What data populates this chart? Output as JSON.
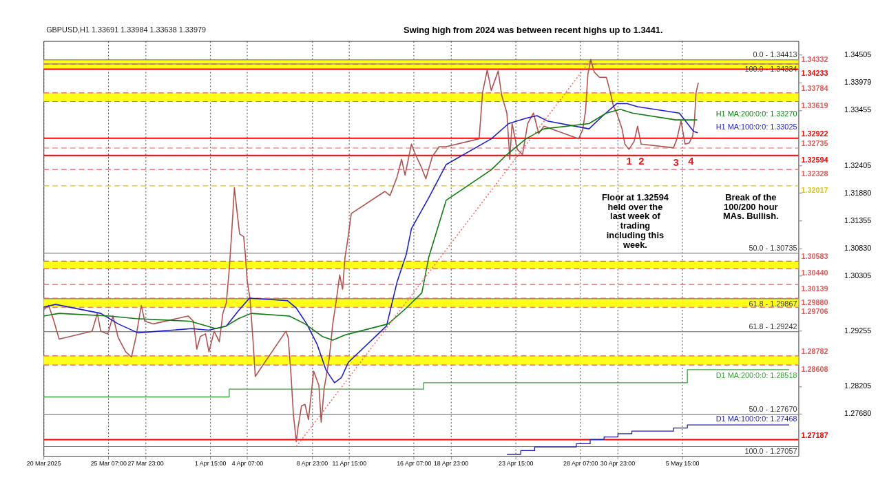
{
  "chart_data": {
    "type": "line",
    "title": "GBPUSD,H1  1.33691 1.33984 1.33638 1.33979",
    "xlim": [
      "2025-03-20T15:00",
      "2025-05-14T00:00"
    ],
    "ylim": [
      1.2688,
      1.3477
    ],
    "xticks": [
      {
        "value": "2025-03-20T15:00",
        "label": "20 Mar 2025"
      },
      {
        "value": "2025-03-25T07:00",
        "label": "25 Mar 07:00"
      },
      {
        "value": "2025-03-27T23:00",
        "label": "27 Mar 23:00"
      },
      {
        "value": "2025-04-01T15:00",
        "label": "1 Apr 15:00"
      },
      {
        "value": "2025-04-04T07:00",
        "label": "4 Apr 07:00"
      },
      {
        "value": "2025-04-08T23:00",
        "label": "8 Apr 23:00"
      },
      {
        "value": "2025-04-11T15:00",
        "label": "11 Apr 15:00"
      },
      {
        "value": "2025-04-16T07:00",
        "label": "16 Apr 07:00"
      },
      {
        "value": "2025-04-18T23:00",
        "label": "18 Apr 23:00"
      },
      {
        "value": "2025-04-23T15:00",
        "label": "23 Apr 15:00"
      },
      {
        "value": "2025-04-28T07:00",
        "label": "28 Apr 07:00"
      },
      {
        "value": "2025-04-30T23:00",
        "label": "30 Apr 23:00"
      },
      {
        "value": "2025-05-05T15:00",
        "label": "5 May 15:00"
      }
    ],
    "yticks": [
      1.34505,
      {
        "value": 1.33979,
        "label": "1.33979"
      },
      1.33455,
      1.32405,
      {
        "value": 1.3188,
        "label": "1.31880"
      },
      1.31355,
      {
        "value": 1.3083,
        "label": "1.30830"
      },
      1.30305,
      1.29255,
      1.28205,
      {
        "value": 1.2768,
        "label": "1.27680"
      }
    ],
    "grid": "x",
    "series": [
      {
        "color": "#b05050",
        "type": "line",
        "x": [
          "2025-03-20T15:00",
          "2025-03-21T00:00",
          "2025-03-21T09:00",
          "2025-03-21T18:00",
          "2025-03-24T03:00",
          "2025-03-24T12:00",
          "2025-03-24T18:00",
          "2025-03-25T06:00",
          "2025-03-25T15:00",
          "2025-03-26T00:00",
          "2025-03-26T13:00",
          "2025-03-26T23:00",
          "2025-03-27T07:00",
          "2025-03-27T16:00",
          "2025-03-27T22:00",
          "2025-03-28T13:00",
          "2025-03-31T01:00",
          "2025-03-31T10:00",
          "2025-03-31T16:00",
          "2025-03-31T22:00",
          "2025-04-01T07:00",
          "2025-04-01T13:00",
          "2025-04-01T22:00",
          "2025-04-02T07:00",
          "2025-04-02T13:00",
          "2025-04-02T19:00",
          "2025-04-03T00:00",
          "2025-04-03T04:00",
          "2025-04-03T09:00",
          "2025-04-03T13:00",
          "2025-04-03T18:00",
          "2025-04-04T01:00",
          "2025-04-04T04:00",
          "2025-04-04T07:00",
          "2025-04-04T12:00",
          "2025-04-04T17:00",
          "2025-04-04T21:00",
          "2025-04-07T02:00",
          "2025-04-07T06:00",
          "2025-04-07T11:00",
          "2025-04-07T15:00",
          "2025-04-07T20:00",
          "2025-04-07T23:00",
          "2025-04-08T05:00",
          "2025-04-08T11:00",
          "2025-04-08T17:00",
          "2025-04-09T02:00",
          "2025-04-09T11:00",
          "2025-04-09T15:00",
          "2025-04-09T20:00",
          "2025-04-10T05:00",
          "2025-04-10T11:00",
          "2025-04-10T17:00",
          "2025-04-10T23:00",
          "2025-04-11T04:00",
          "2025-04-11T08:00",
          "2025-04-11T13:00",
          "2025-04-11T19:00",
          "2025-04-14T05:00",
          "2025-04-14T14:00",
          "2025-04-15T02:00",
          "2025-04-15T10:00",
          "2025-04-15T16:00",
          "2025-04-16T03:00",
          "2025-04-16T10:00",
          "2025-04-16T19:00",
          "2025-04-17T04:00",
          "2025-04-17T15:00",
          "2025-04-18T03:00",
          "2025-04-18T15:00",
          "2025-04-21T00:00",
          "2025-04-21T06:00",
          "2025-04-21T14:00",
          "2025-04-21T21:00",
          "2025-04-22T09:00",
          "2025-04-22T15:00",
          "2025-04-23T00:00",
          "2025-04-23T05:00",
          "2025-04-23T09:00",
          "2025-04-23T18:00",
          "2025-04-24T03:00",
          "2025-04-24T12:00",
          "2025-04-24T22:00",
          "2025-04-25T07:00",
          "2025-04-25T16:00",
          "2025-04-28T04:00",
          "2025-04-28T11:00",
          "2025-04-28T16:00",
          "2025-04-28T20:00",
          "2025-04-29T01:00",
          "2025-04-29T07:00",
          "2025-04-29T16:00",
          "2025-04-30T04:00",
          "2025-04-30T10:00",
          "2025-04-30T16:00",
          "2025-04-30T22:00",
          "2025-05-01T07:00",
          "2025-05-01T12:00",
          "2025-05-01T19:00",
          "2025-05-02T04:00",
          "2025-05-02T10:00",
          "2025-05-02T16:00",
          "2025-05-05T00:00",
          "2025-05-05T06:00",
          "2025-05-05T13:00",
          "2025-05-05T20:00",
          "2025-05-06T03:00",
          "2025-05-06T09:00",
          "2025-05-06T12:00",
          "2025-05-06T15:00",
          "2025-05-06T19:00"
        ],
        "values": [
          1.2966,
          1.2974,
          1.2944,
          1.291,
          1.2925,
          1.2959,
          1.2925,
          1.292,
          1.2954,
          1.2913,
          1.2886,
          1.2876,
          1.2915,
          1.2974,
          1.2944,
          1.2939,
          1.2954,
          1.2944,
          1.2891,
          1.2915,
          1.292,
          1.2886,
          1.2925,
          1.2905,
          1.2959,
          1.2979,
          1.3042,
          1.3108,
          1.3198,
          1.3157,
          1.311,
          1.3105,
          1.3069,
          1.3022,
          1.2986,
          1.291,
          1.2839,
          1.2925,
          1.2913,
          1.2839,
          1.2766,
          1.2715,
          1.2742,
          1.2783,
          1.2786,
          1.2757,
          1.2849,
          1.2822,
          1.2752,
          1.2815,
          1.2874,
          1.2939,
          1.2983,
          1.3032,
          1.3005,
          1.3064,
          1.31,
          1.3149,
          1.3191,
          1.3183,
          1.3218,
          1.3252,
          1.3222,
          1.3281,
          1.3261,
          1.324,
          1.3215,
          1.3257,
          1.3276,
          1.3276,
          1.3291,
          1.3379,
          1.3422,
          1.3383,
          1.342,
          1.3374,
          1.334,
          1.3252,
          1.332,
          1.3271,
          1.3261,
          1.332,
          1.334,
          1.3301,
          1.3315,
          1.3291,
          1.3308,
          1.3344,
          1.3413,
          1.3442,
          1.3418,
          1.3408,
          1.3408,
          1.3383,
          1.3354,
          1.334,
          1.331,
          1.3281,
          1.3271,
          1.3286,
          1.3315,
          1.3281,
          1.3274,
          1.3291,
          1.3325,
          1.3281,
          1.3283,
          1.3296,
          1.332,
          1.3379,
          1.33979
        ]
      },
      {
        "name": "H1 MA:100:0:0: 1.33025",
        "color": "#1c1cd0",
        "type": "line",
        "x": [
          "2025-03-20T15:00",
          "2025-03-21T12:00",
          "2025-03-24T18:00",
          "2025-03-26T00:00",
          "2025-03-27T10:00",
          "2025-03-31T07:00",
          "2025-04-01T13:00",
          "2025-04-02T19:00",
          "2025-04-03T16:00",
          "2025-04-04T11:00",
          "2025-04-07T05:00",
          "2025-04-07T20:00",
          "2025-04-08T14:00",
          "2025-04-09T08:00",
          "2025-04-09T23:00",
          "2025-04-10T14:00",
          "2025-04-11T02:00",
          "2025-04-11T14:00",
          "2025-04-14T08:00",
          "2025-04-15T02:00",
          "2025-04-15T18:00",
          "2025-04-16T03:00",
          "2025-04-17T09:00",
          "2025-04-18T15:00",
          "2025-04-21T21:00",
          "2025-04-23T03:00",
          "2025-04-24T09:00",
          "2025-04-25T04:00",
          "2025-04-25T22:00",
          "2025-04-28T22:00",
          "2025-04-29T22:00",
          "2025-04-30T22:00",
          "2025-05-01T16:00",
          "2025-05-02T10:00",
          "2025-05-05T10:00",
          "2025-05-06T11:00",
          "2025-05-06T18:00"
        ],
        "values": [
          1.2971,
          1.2976,
          1.2959,
          1.2939,
          1.2922,
          1.293,
          1.2927,
          1.2935,
          1.2964,
          1.2988,
          1.2983,
          1.2969,
          1.2939,
          1.29,
          1.2852,
          1.2827,
          1.2837,
          1.2866,
          1.2935,
          1.3018,
          1.3071,
          1.312,
          1.3179,
          1.3242,
          1.3291,
          1.332,
          1.333,
          1.3335,
          1.3325,
          1.331,
          1.3335,
          1.3358,
          1.3358,
          1.3352,
          1.334,
          1.3305,
          1.33025
        ]
      },
      {
        "name": "H1 MA:200:0:0: 1.33270",
        "color": "#0f7a0f",
        "type": "line",
        "x": [
          "2025-03-20T15:00",
          "2025-03-21T18:00",
          "2025-03-25T09:00",
          "2025-03-27T07:00",
          "2025-03-31T04:00",
          "2025-04-02T01:00",
          "2025-04-02T19:00",
          "2025-04-03T16:00",
          "2025-04-04T14:00",
          "2025-04-07T08:00",
          "2025-04-08T11:00",
          "2025-04-09T17:00",
          "2025-04-10T11:00",
          "2025-04-11T08:00",
          "2025-04-14T11:00",
          "2025-04-15T18:00",
          "2025-04-16T21:00",
          "2025-04-17T09:00",
          "2025-04-18T15:00",
          "2025-04-21T21:00",
          "2025-04-23T00:00",
          "2025-04-24T09:00",
          "2025-04-25T16:00",
          "2025-04-28T22:00",
          "2025-04-30T04:00",
          "2025-05-01T04:00",
          "2025-05-02T01:00",
          "2025-05-05T04:00",
          "2025-05-05T22:00",
          "2025-05-06T17:00"
        ],
        "values": [
          1.2954,
          1.2959,
          1.2954,
          1.2949,
          1.2944,
          1.293,
          1.2935,
          1.2949,
          1.2959,
          1.2954,
          1.2939,
          1.2915,
          1.2908,
          1.2918,
          1.2939,
          1.2969,
          1.2998,
          1.3066,
          1.3174,
          1.3232,
          1.3261,
          1.3291,
          1.331,
          1.332,
          1.334,
          1.3347,
          1.334,
          1.3327,
          1.3327,
          1.3327
        ]
      },
      {
        "name": "D1 MA:200:0:0: 1.28518",
        "color": "#3aa03a",
        "type": "step",
        "x": [
          "2025-03-20T15:00",
          "2025-04-03T00:00",
          "2025-04-17T00:00",
          "2025-05-06T00:00",
          "2025-05-13T08:00"
        ],
        "values": [
          1.28,
          1.2815,
          1.2827,
          1.28518,
          1.28518
        ]
      },
      {
        "name": "D1 MA:100:0:0: 1.27468",
        "color": "#1c1cb0",
        "type": "step",
        "x": [
          "2025-04-23T00:00",
          "2025-04-24T00:00",
          "2025-04-25T00:00",
          "2025-04-28T00:00",
          "2025-04-29T00:00",
          "2025-04-30T00:00",
          "2025-05-01T00:00",
          "2025-05-02T00:00",
          "2025-05-05T00:00",
          "2025-05-06T00:00",
          "2025-05-13T08:00"
        ],
        "values": [
          1.2691,
          1.2698,
          1.2705,
          1.2711,
          1.2719,
          1.2724,
          1.273,
          1.2735,
          1.2741,
          1.27468,
          1.27468
        ]
      },
      {
        "color": "#ff6666",
        "type": "line",
        "line_style": "dotted",
        "x": [
          "2025-04-07T20:00",
          "2025-04-29T01:00"
        ],
        "values": [
          1.27057,
          1.34413
        ]
      }
    ],
    "bands": [
      {
        "axis": "y",
        "from": 1.34233,
        "to": 1.34413,
        "color": "#ffff00"
      },
      {
        "axis": "y",
        "from": 1.33619,
        "to": 1.33784,
        "color": "#ffff00"
      },
      {
        "axis": "y",
        "from": 1.3044,
        "to": 1.30583,
        "color": "#ffff00"
      },
      {
        "axis": "y",
        "from": 1.29706,
        "to": 1.2988,
        "color": "#ffff00"
      },
      {
        "axis": "y",
        "from": 1.28608,
        "to": 1.28782,
        "color": "#ffff00"
      }
    ],
    "ref_lines": [
      {
        "axis": "y",
        "value": 1.34413,
        "color": "#808080",
        "line_style": "solid"
      },
      {
        "axis": "y",
        "value": 1.34334,
        "color": "#808080",
        "line_style": "solid"
      },
      {
        "axis": "y",
        "value": 1.30735,
        "color": "#808080",
        "line_style": "solid"
      },
      {
        "axis": "y",
        "value": 1.29867,
        "color": "#808080",
        "line_style": "solid"
      },
      {
        "axis": "y",
        "value": 1.29242,
        "color": "#808080",
        "line_style": "solid"
      },
      {
        "axis": "y",
        "value": 1.2767,
        "color": "#808080",
        "line_style": "solid"
      },
      {
        "axis": "y",
        "value": 1.27057,
        "color": "#808080",
        "line_style": "solid"
      },
      {
        "axis": "y",
        "value": 1.34332,
        "label": "1.34332",
        "color": "#e85a5a",
        "line_style": "dashed"
      },
      {
        "axis": "y",
        "value": 1.34233,
        "label": "1.34233",
        "color": "#ff0000",
        "line_style": "solid"
      },
      {
        "axis": "y",
        "value": 1.33784,
        "label": "1.33784",
        "color": "#e85a5a",
        "line_style": "dashed"
      },
      {
        "axis": "y",
        "value": 1.33619,
        "label": "1.33619",
        "color": "#e85a5a",
        "line_style": "dashed"
      },
      {
        "axis": "y",
        "value": 1.32922,
        "label": "1.32922",
        "color": "#ff0000",
        "line_style": "solid"
      },
      {
        "axis": "y",
        "value": 1.32735,
        "label": "1.32735",
        "color": "#e85a5a",
        "line_style": "dashed"
      },
      {
        "axis": "y",
        "value": 1.32594,
        "label": "1.32594",
        "color": "#ff0000",
        "line_style": "solid"
      },
      {
        "axis": "y",
        "value": 1.32328,
        "label": "1.32328",
        "color": "#e85a5a",
        "line_style": "dashed"
      },
      {
        "axis": "y",
        "value": 1.32017,
        "label": "1.32017",
        "color": "#e0c800",
        "line_style": "dashed"
      },
      {
        "axis": "y",
        "value": 1.30583,
        "label": "1.30583",
        "color": "#e85a5a",
        "line_style": "dashed"
      },
      {
        "axis": "y",
        "value": 1.3044,
        "label": "1.30440",
        "color": "#e85a5a",
        "line_style": "dashed"
      },
      {
        "axis": "y",
        "value": 1.30139,
        "label": "1.30139",
        "color": "#e85a5a",
        "line_style": "dashed"
      },
      {
        "axis": "y",
        "value": 1.2988,
        "label": "1.29880",
        "color": "#e85a5a",
        "line_style": "dashed"
      },
      {
        "axis": "y",
        "value": 1.29706,
        "label": "1.29706",
        "color": "#e85a5a",
        "line_style": "dashed"
      },
      {
        "axis": "y",
        "value": 1.28782,
        "label": "1.28782",
        "color": "#e85a5a",
        "line_style": "dashed"
      },
      {
        "axis": "y",
        "value": 1.28608,
        "label": "1.28608",
        "color": "#e85a5a",
        "line_style": "dashed"
      },
      {
        "axis": "y",
        "value": 1.27187,
        "label": "1.27187",
        "color": "#ff0000",
        "line_style": "solid"
      }
    ],
    "annotations": [
      "Swing high from 2024 was between recent highs up to 1.3441.",
      "Floor at 1.32594 held over the last week of trading including this week.",
      "Break of the 100/200 hour MAs. Bullish.",
      "1",
      "2",
      "3",
      "4",
      {
        "text": "0.0 - 1.34413",
        "y": 1.34413
      },
      {
        "text": "100.0 - 1.34334",
        "y": 1.34334
      },
      {
        "text": "50.0 - 1.30735",
        "y": 1.30735
      },
      {
        "text": "61.8 - 1.29867",
        "y": 1.29867
      },
      {
        "text": "61.8 - 1.29242",
        "y": 1.29242
      },
      {
        "text": "50.0 - 1.27670",
        "y": 1.2767
      },
      {
        "text": "100.0 - 1.27057",
        "y": 1.27057
      }
    ]
  }
}
